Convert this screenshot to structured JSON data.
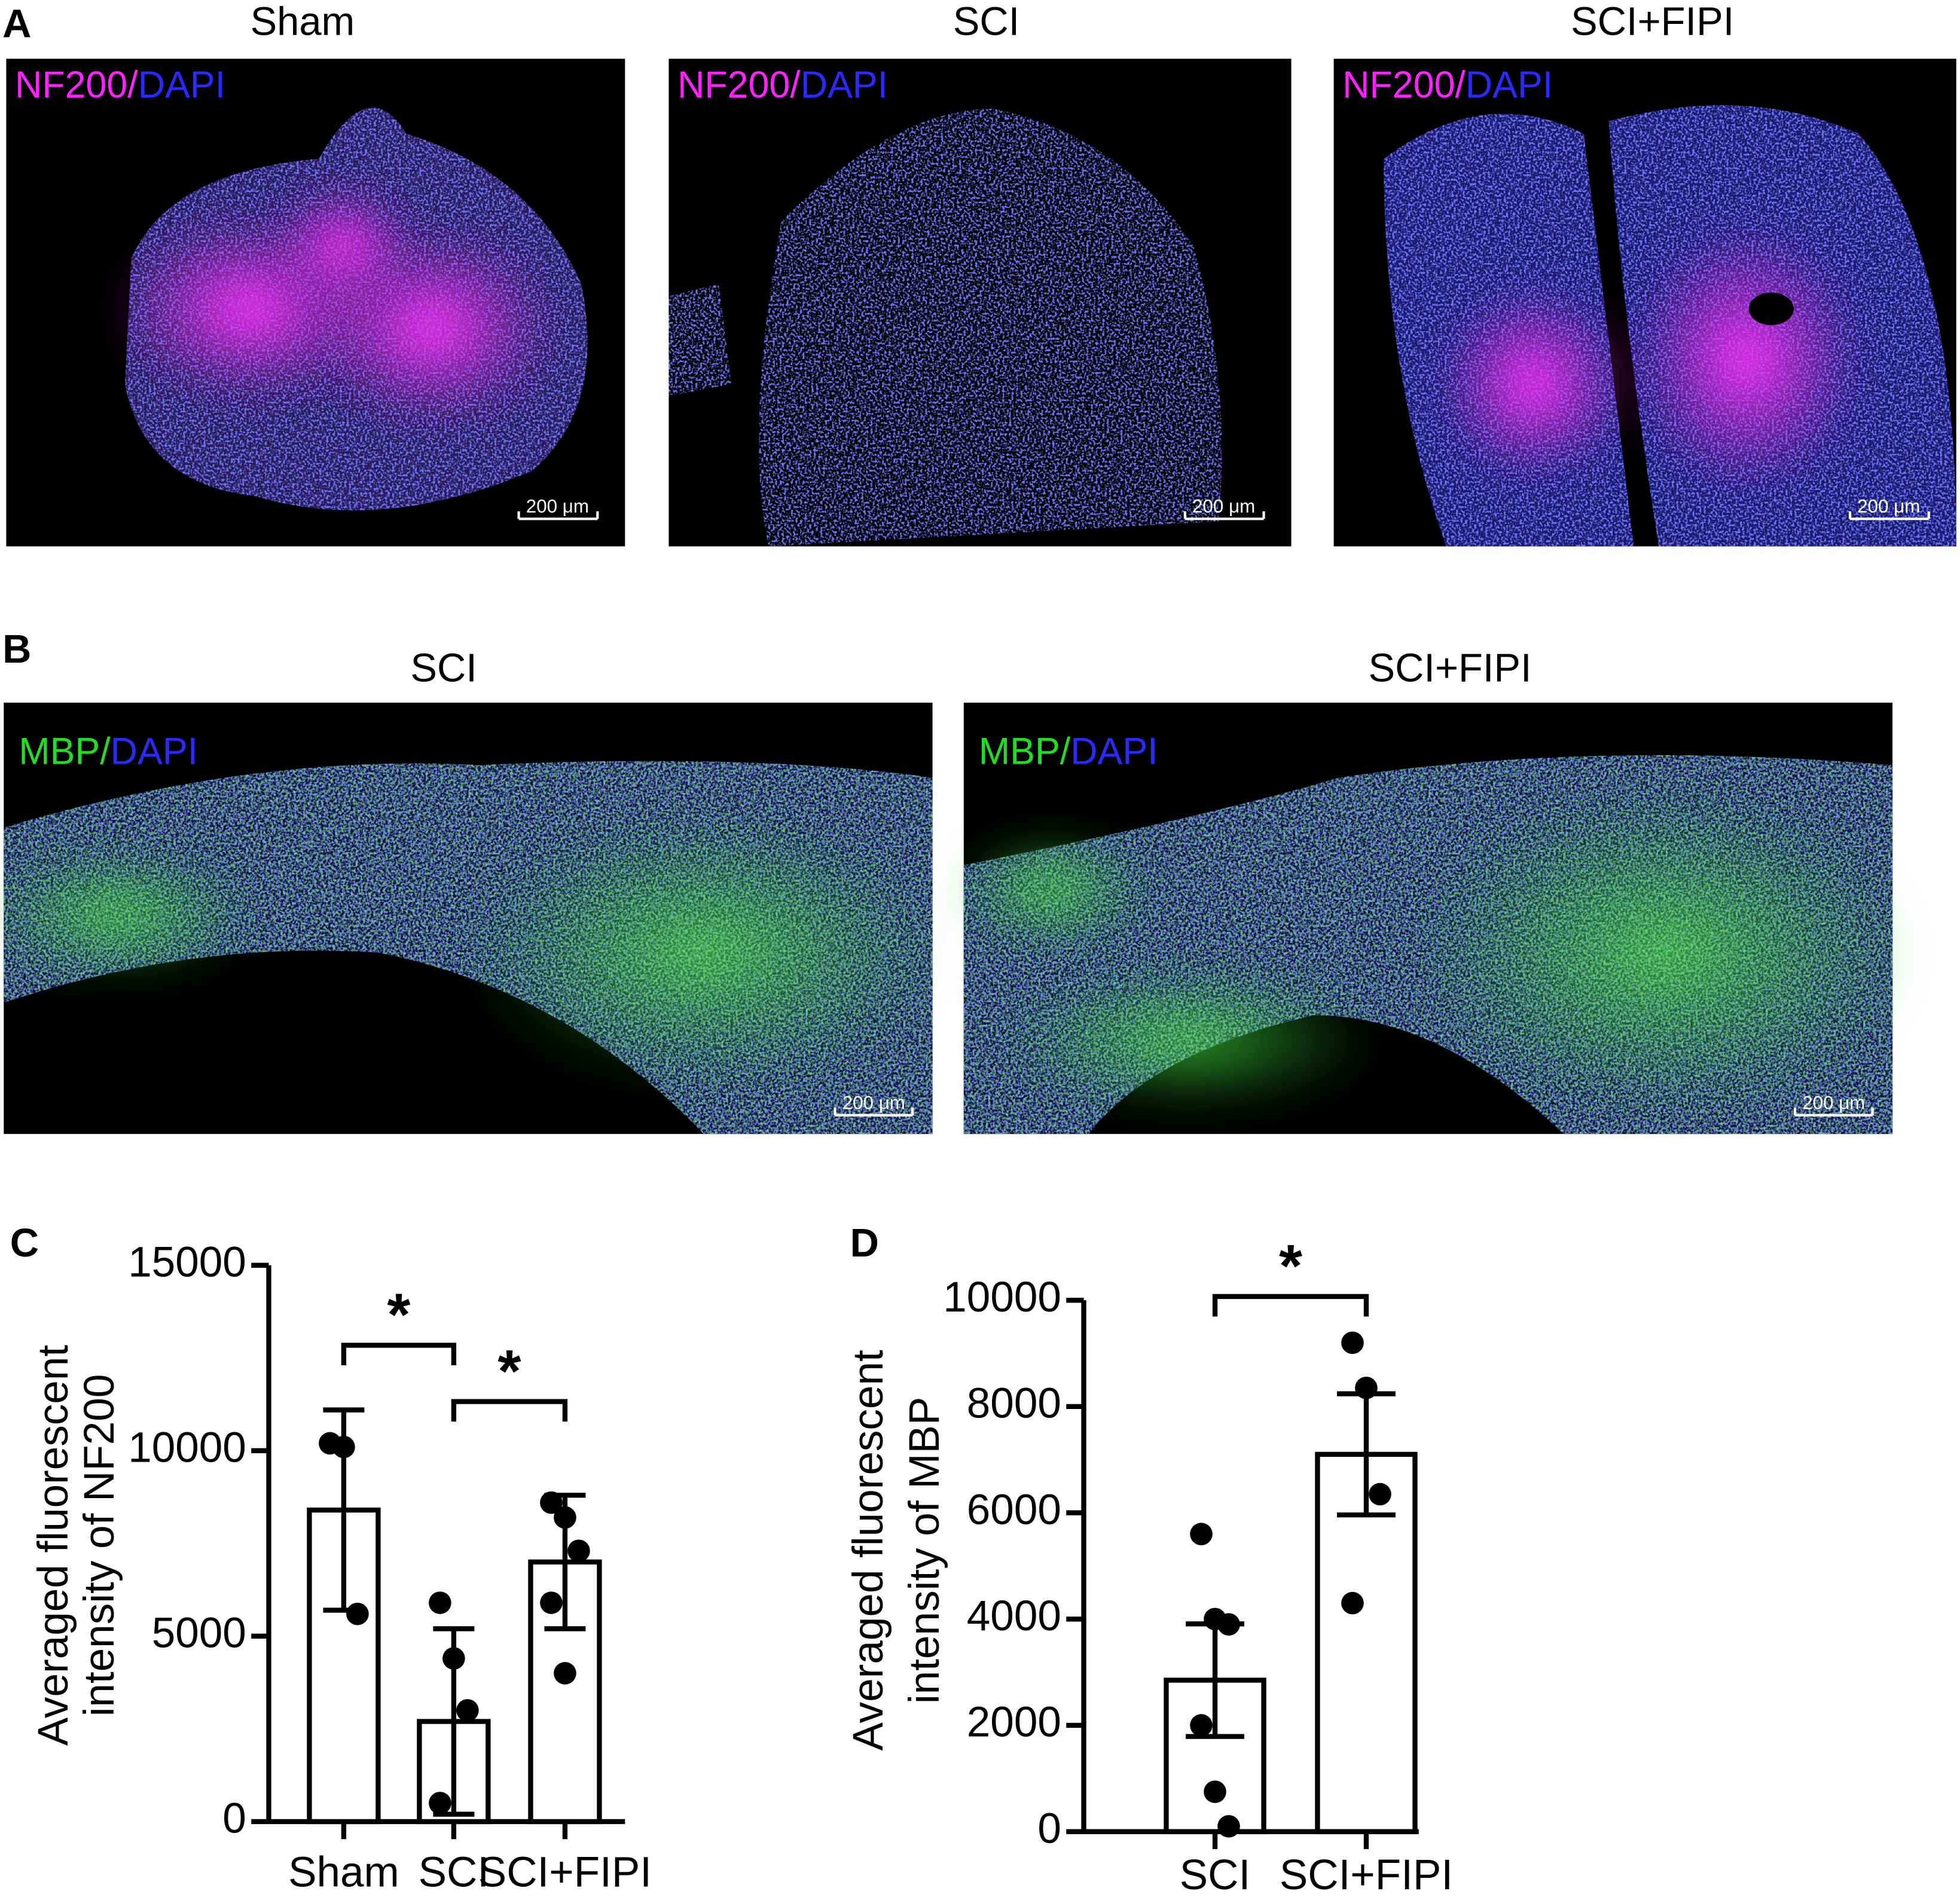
{
  "figure": {
    "panel_a": {
      "label": "A",
      "stain": {
        "marker": "NF200",
        "separator": "/",
        "counterstain": "DAPI"
      },
      "images": [
        {
          "title": "Sham",
          "scale_bar": "200 μm"
        },
        {
          "title": "SCI",
          "scale_bar": "200 μm"
        },
        {
          "title": "SCI+FIPI",
          "scale_bar": "200 μm"
        }
      ]
    },
    "panel_b": {
      "label": "B",
      "stain": {
        "marker": "MBP",
        "separator": "/",
        "counterstain": "DAPI"
      },
      "images": [
        {
          "title": "SCI",
          "scale_bar": "200 μm"
        },
        {
          "title": "SCI+FIPI",
          "scale_bar": "200 μm"
        }
      ]
    }
  },
  "chart_data": [
    {
      "type": "bar",
      "panel_label": "C",
      "ylabel": [
        "Averaged fluorescent",
        "intensity of NF200"
      ],
      "categories": [
        "Sham",
        "SCI",
        "SCI+FIPI"
      ],
      "values": [
        8400,
        2700,
        7000
      ],
      "errors": [
        2700,
        2500,
        1800
      ],
      "points": [
        [
          10200,
          10100,
          5600
        ],
        [
          5900,
          4400,
          3000,
          500
        ],
        [
          8600,
          8200,
          7300,
          5900,
          4000
        ]
      ],
      "color": "#ffffff",
      "ylim": [
        0,
        15000
      ],
      "yticks": [
        0,
        5000,
        10000,
        15000
      ],
      "comparisons": [
        {
          "groups": [
            "Sham",
            "SCI"
          ],
          "label": "*"
        },
        {
          "groups": [
            "SCI",
            "SCI+FIPI"
          ],
          "label": "*"
        }
      ]
    },
    {
      "type": "bar",
      "panel_label": "D",
      "ylabel": [
        "Averaged fluorescent",
        "intensity of MBP"
      ],
      "categories": [
        "SCI",
        "SCI+FIPI"
      ],
      "values": [
        2850,
        7100
      ],
      "errors": [
        1060,
        1140
      ],
      "points": [
        [
          5600,
          4000,
          3900,
          2000,
          750,
          100
        ],
        [
          9200,
          8350,
          6350,
          4300
        ]
      ],
      "color": "#ffffff",
      "ylim": [
        0,
        10000
      ],
      "yticks": [
        0,
        2000,
        4000,
        6000,
        8000,
        10000
      ],
      "comparisons": [
        {
          "groups": [
            "SCI",
            "SCI+FIPI"
          ],
          "label": "*"
        }
      ]
    }
  ]
}
